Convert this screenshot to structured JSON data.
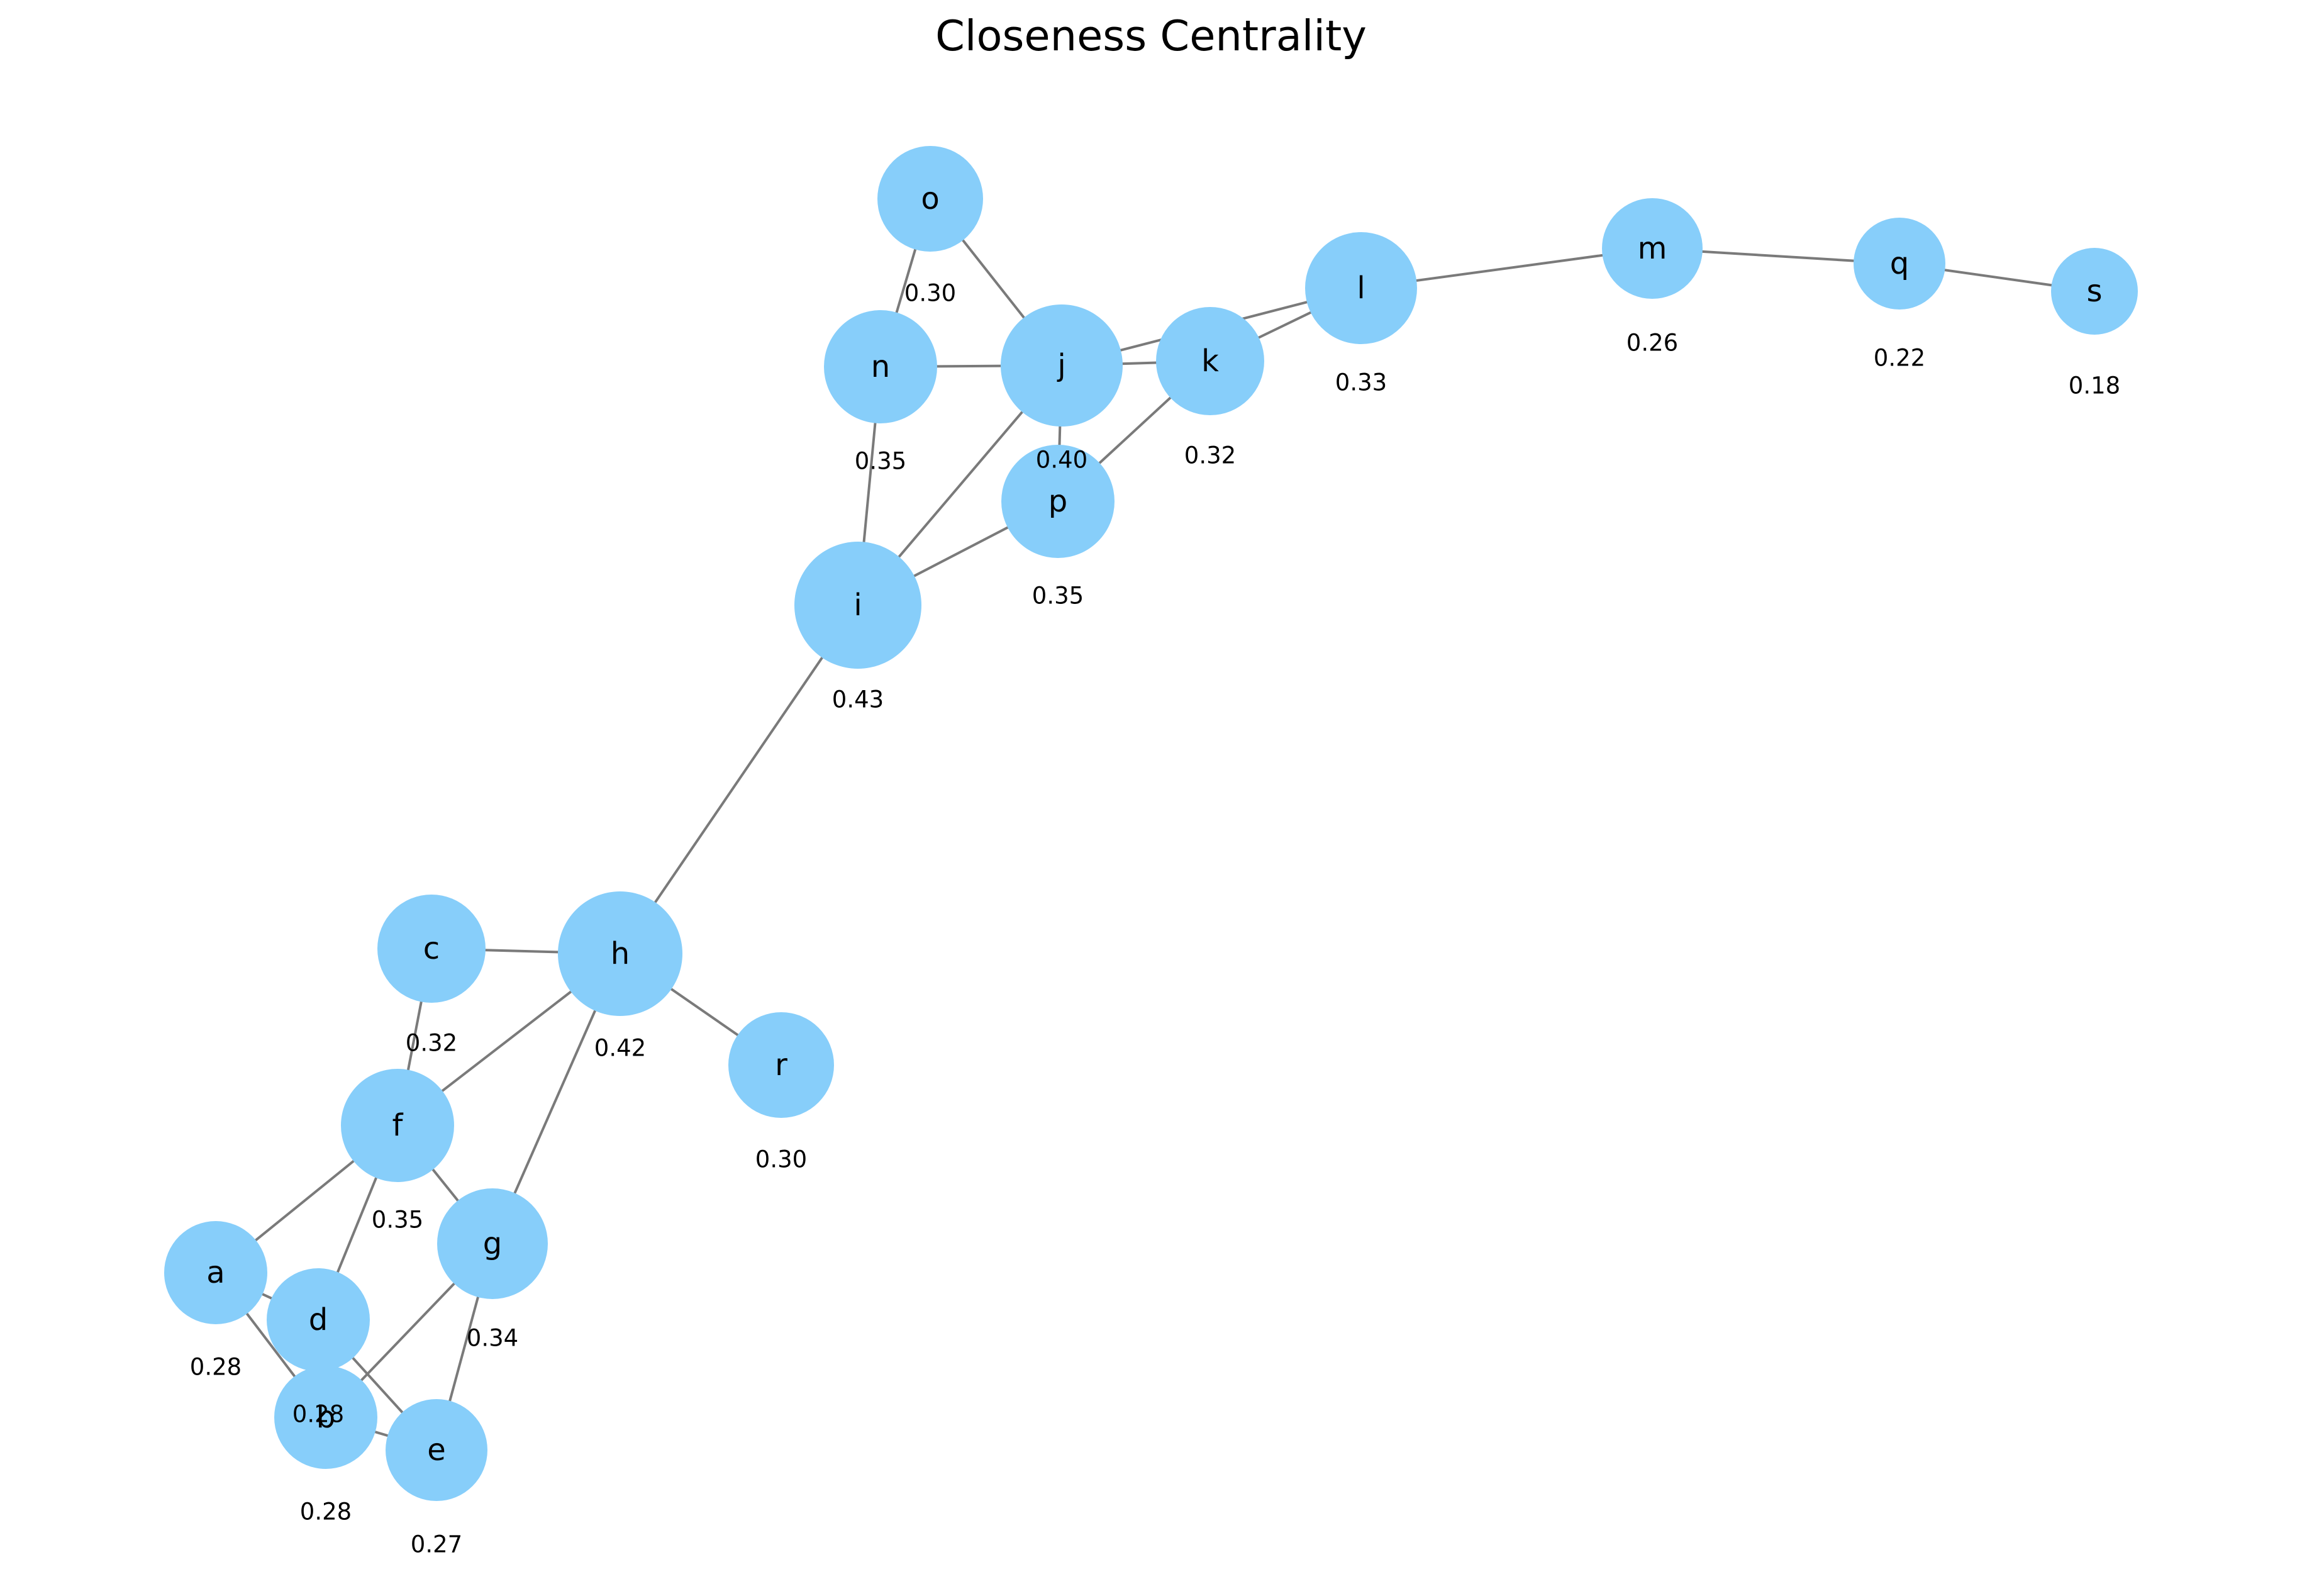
{
  "title": "Closeness Centrality",
  "colors": {
    "node": "#87cefa",
    "edge": "#7a7a7a",
    "text": "#000000",
    "background": "#ffffff"
  },
  "nodes": [
    {
      "id": "a",
      "label": "a",
      "value": "0.28"
    },
    {
      "id": "b",
      "label": "b",
      "value": "0.28"
    },
    {
      "id": "c",
      "label": "c",
      "value": "0.32"
    },
    {
      "id": "d",
      "label": "d",
      "value": "0.28"
    },
    {
      "id": "e",
      "label": "e",
      "value": "0.27"
    },
    {
      "id": "f",
      "label": "f",
      "value": "0.35"
    },
    {
      "id": "g",
      "label": "g",
      "value": "0.34"
    },
    {
      "id": "h",
      "label": "h",
      "value": "0.42"
    },
    {
      "id": "i",
      "label": "i",
      "value": "0.43"
    },
    {
      "id": "j",
      "label": "j",
      "value": "0.40"
    },
    {
      "id": "k",
      "label": "k",
      "value": "0.32"
    },
    {
      "id": "l",
      "label": "l",
      "value": "0.33"
    },
    {
      "id": "m",
      "label": "m",
      "value": "0.26"
    },
    {
      "id": "n",
      "label": "n",
      "value": "0.35"
    },
    {
      "id": "o",
      "label": "o",
      "value": "0.30"
    },
    {
      "id": "p",
      "label": "p",
      "value": "0.35"
    },
    {
      "id": "q",
      "label": "q",
      "value": "0.22"
    },
    {
      "id": "r",
      "label": "r",
      "value": "0.30"
    },
    {
      "id": "s",
      "label": "s",
      "value": "0.18"
    }
  ],
  "edges": [
    [
      "o",
      "n"
    ],
    [
      "o",
      "j"
    ],
    [
      "n",
      "j"
    ],
    [
      "n",
      "i"
    ],
    [
      "j",
      "i"
    ],
    [
      "j",
      "p"
    ],
    [
      "j",
      "k"
    ],
    [
      "j",
      "l"
    ],
    [
      "k",
      "l"
    ],
    [
      "k",
      "p"
    ],
    [
      "i",
      "p"
    ],
    [
      "i",
      "h"
    ],
    [
      "l",
      "m"
    ],
    [
      "m",
      "q"
    ],
    [
      "q",
      "s"
    ],
    [
      "h",
      "c"
    ],
    [
      "h",
      "f"
    ],
    [
      "h",
      "g"
    ],
    [
      "h",
      "r"
    ],
    [
      "c",
      "f"
    ],
    [
      "f",
      "a"
    ],
    [
      "f",
      "d"
    ],
    [
      "f",
      "g"
    ],
    [
      "a",
      "b"
    ],
    [
      "a",
      "d"
    ],
    [
      "d",
      "e"
    ],
    [
      "g",
      "b"
    ],
    [
      "g",
      "e"
    ],
    [
      "b",
      "e"
    ]
  ]
}
